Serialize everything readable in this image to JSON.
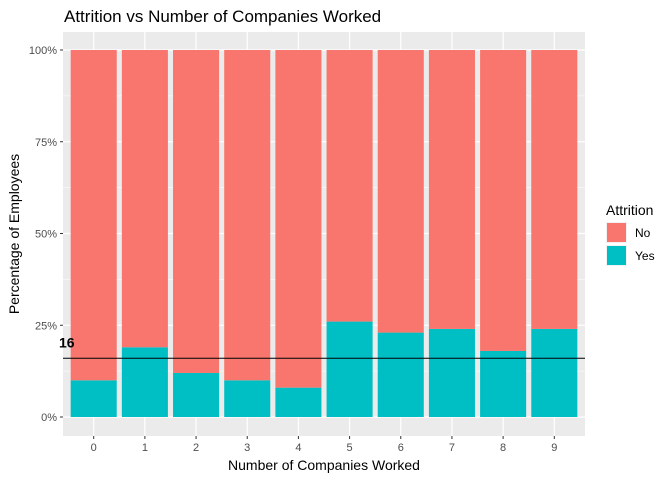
{
  "chart_data": {
    "type": "bar",
    "stacked": true,
    "title": "Attrition vs Number of Companies Worked",
    "xlabel": "Number of Companies Worked",
    "ylabel": "Percentage of Employees",
    "categories": [
      "0",
      "1",
      "2",
      "3",
      "4",
      "5",
      "6",
      "7",
      "8",
      "9"
    ],
    "y_ticks": [
      "0%",
      "25%",
      "50%",
      "75%",
      "100%"
    ],
    "ylim": [
      0,
      1
    ],
    "series": [
      {
        "name": "Yes",
        "color": "#00BFC4",
        "values": [
          0.1,
          0.19,
          0.12,
          0.1,
          0.08,
          0.26,
          0.23,
          0.24,
          0.18,
          0.24
        ]
      },
      {
        "name": "No",
        "color": "#F8766D",
        "values": [
          0.9,
          0.81,
          0.88,
          0.9,
          0.92,
          0.74,
          0.77,
          0.76,
          0.82,
          0.76
        ]
      }
    ],
    "legend": {
      "title": "Attrition",
      "position": "right",
      "order": [
        "No",
        "Yes"
      ]
    },
    "reference_line": {
      "value": 0.16,
      "label": "16",
      "color": "#000000"
    },
    "panel_background": "#EBEBEB",
    "grid": true
  }
}
